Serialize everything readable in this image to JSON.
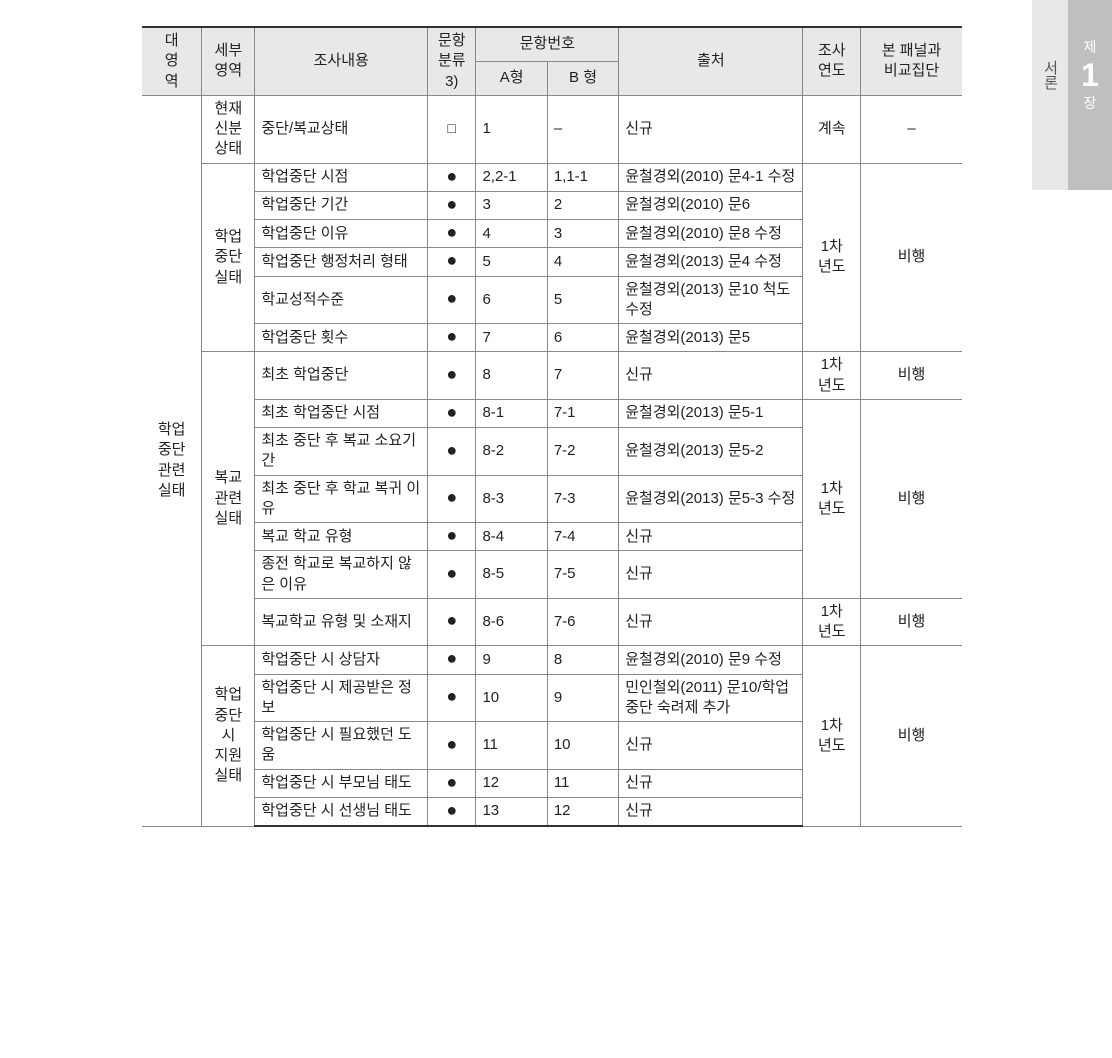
{
  "side_tab": {
    "left_label": "서론",
    "right_top": "제",
    "right_num": "1",
    "right_bottom": "장"
  },
  "headers": {
    "major": "대\n영\n역",
    "sub": "세부\n영역",
    "content": "조사내용",
    "classification": "문항\n분류\n3)",
    "item_number": "문항번호",
    "type_a": "A형",
    "type_b": "B 형",
    "source": "출처",
    "year": "조사\n연도",
    "compare": "본 패널과\n비교집단"
  },
  "major_area": "학업\n중단\n관련\n실태",
  "groups": [
    {
      "sub": "현재\n신분\n상태",
      "year_spans": [
        {
          "year": "계속",
          "compare": "–",
          "count": 1
        }
      ],
      "rows": [
        {
          "content": "중단/복교상태",
          "cls": "□",
          "a": "1",
          "b": "–",
          "source": "신규"
        }
      ]
    },
    {
      "sub": "학업\n중단\n실태",
      "year_spans": [
        {
          "year": "1차\n년도",
          "compare": "비행",
          "count": 6
        }
      ],
      "rows": [
        {
          "content": "학업중단 시점",
          "cls": "●",
          "a": "2,2-1",
          "b": "1,1-1",
          "source": "윤철경외(2010) 문4-1 수정"
        },
        {
          "content": "학업중단 기간",
          "cls": "●",
          "a": "3",
          "b": "2",
          "source": "윤철경외(2010) 문6"
        },
        {
          "content": "학업중단 이유",
          "cls": "●",
          "a": "4",
          "b": "3",
          "source": "윤철경외(2010) 문8 수정"
        },
        {
          "content": "학업중단 행정처리 형태",
          "cls": "●",
          "a": "5",
          "b": "4",
          "source": "윤철경외(2013) 문4 수정"
        },
        {
          "content": "학교성적수준",
          "cls": "●",
          "a": "6",
          "b": "5",
          "source": "윤철경외(2013) 문10 척도 수정"
        },
        {
          "content": "학업중단 횟수",
          "cls": "●",
          "a": "7",
          "b": "6",
          "source": "윤철경외(2013) 문5"
        }
      ]
    },
    {
      "sub": "복교\n관련\n실태",
      "year_spans": [
        {
          "year": "1차\n년도",
          "compare": "비행",
          "count": 1
        },
        {
          "year": "1차\n년도",
          "compare": "비행",
          "count": 5
        },
        {
          "year": "1차\n년도",
          "compare": "비행",
          "count": 1
        }
      ],
      "rows": [
        {
          "content": "최초 학업중단",
          "cls": "●",
          "a": "8",
          "b": "7",
          "source": "신규"
        },
        {
          "content": "최초 학업중단 시점",
          "cls": "●",
          "a": "8-1",
          "b": "7-1",
          "source": "윤철경외(2013) 문5-1"
        },
        {
          "content": "최초 중단 후 복교 소요기간",
          "cls": "●",
          "a": "8-2",
          "b": "7-2",
          "source": "윤철경외(2013) 문5-2"
        },
        {
          "content": "최초 중단 후 학교 복귀 이유",
          "cls": "●",
          "a": "8-3",
          "b": "7-3",
          "source": "윤철경외(2013) 문5-3 수정"
        },
        {
          "content": "복교 학교 유형",
          "cls": "●",
          "a": "8-4",
          "b": "7-4",
          "source": "신규"
        },
        {
          "content": "종전 학교로 복교하지 않은 이유",
          "cls": "●",
          "a": "8-5",
          "b": "7-5",
          "source": "신규"
        },
        {
          "content": "복교학교 유형 및 소재지",
          "cls": "●",
          "a": "8-6",
          "b": "7-6",
          "source": "신규"
        }
      ]
    },
    {
      "sub": "학업\n중단\n시\n지원\n실태",
      "year_spans": [
        {
          "year": "1차\n년도",
          "compare": "비행",
          "count": 5
        }
      ],
      "rows": [
        {
          "content": "학업중단 시 상담자",
          "cls": "●",
          "a": "9",
          "b": "8",
          "source": "윤철경외(2010) 문9 수정"
        },
        {
          "content": "학업중단 시 제공받은 정보",
          "cls": "●",
          "a": "10",
          "b": "9",
          "source": "민인철외(2011) 문10/학업중단 숙려제 추가"
        },
        {
          "content": "학업중단 시 필요했던 도움",
          "cls": "●",
          "a": "11",
          "b": "10",
          "source": "신규"
        },
        {
          "content": "학업중단 시 부모님 태도",
          "cls": "●",
          "a": "12",
          "b": "11",
          "source": "신규"
        },
        {
          "content": "학업중단 시 선생님 태도",
          "cls": "●",
          "a": "13",
          "b": "12",
          "source": "신규"
        }
      ]
    }
  ],
  "colors": {
    "header_bg": "#e8e8e8",
    "border": "#888888",
    "text": "#222222",
    "tab_light": "#e8e8e8",
    "tab_dark": "#bfbfbf"
  }
}
